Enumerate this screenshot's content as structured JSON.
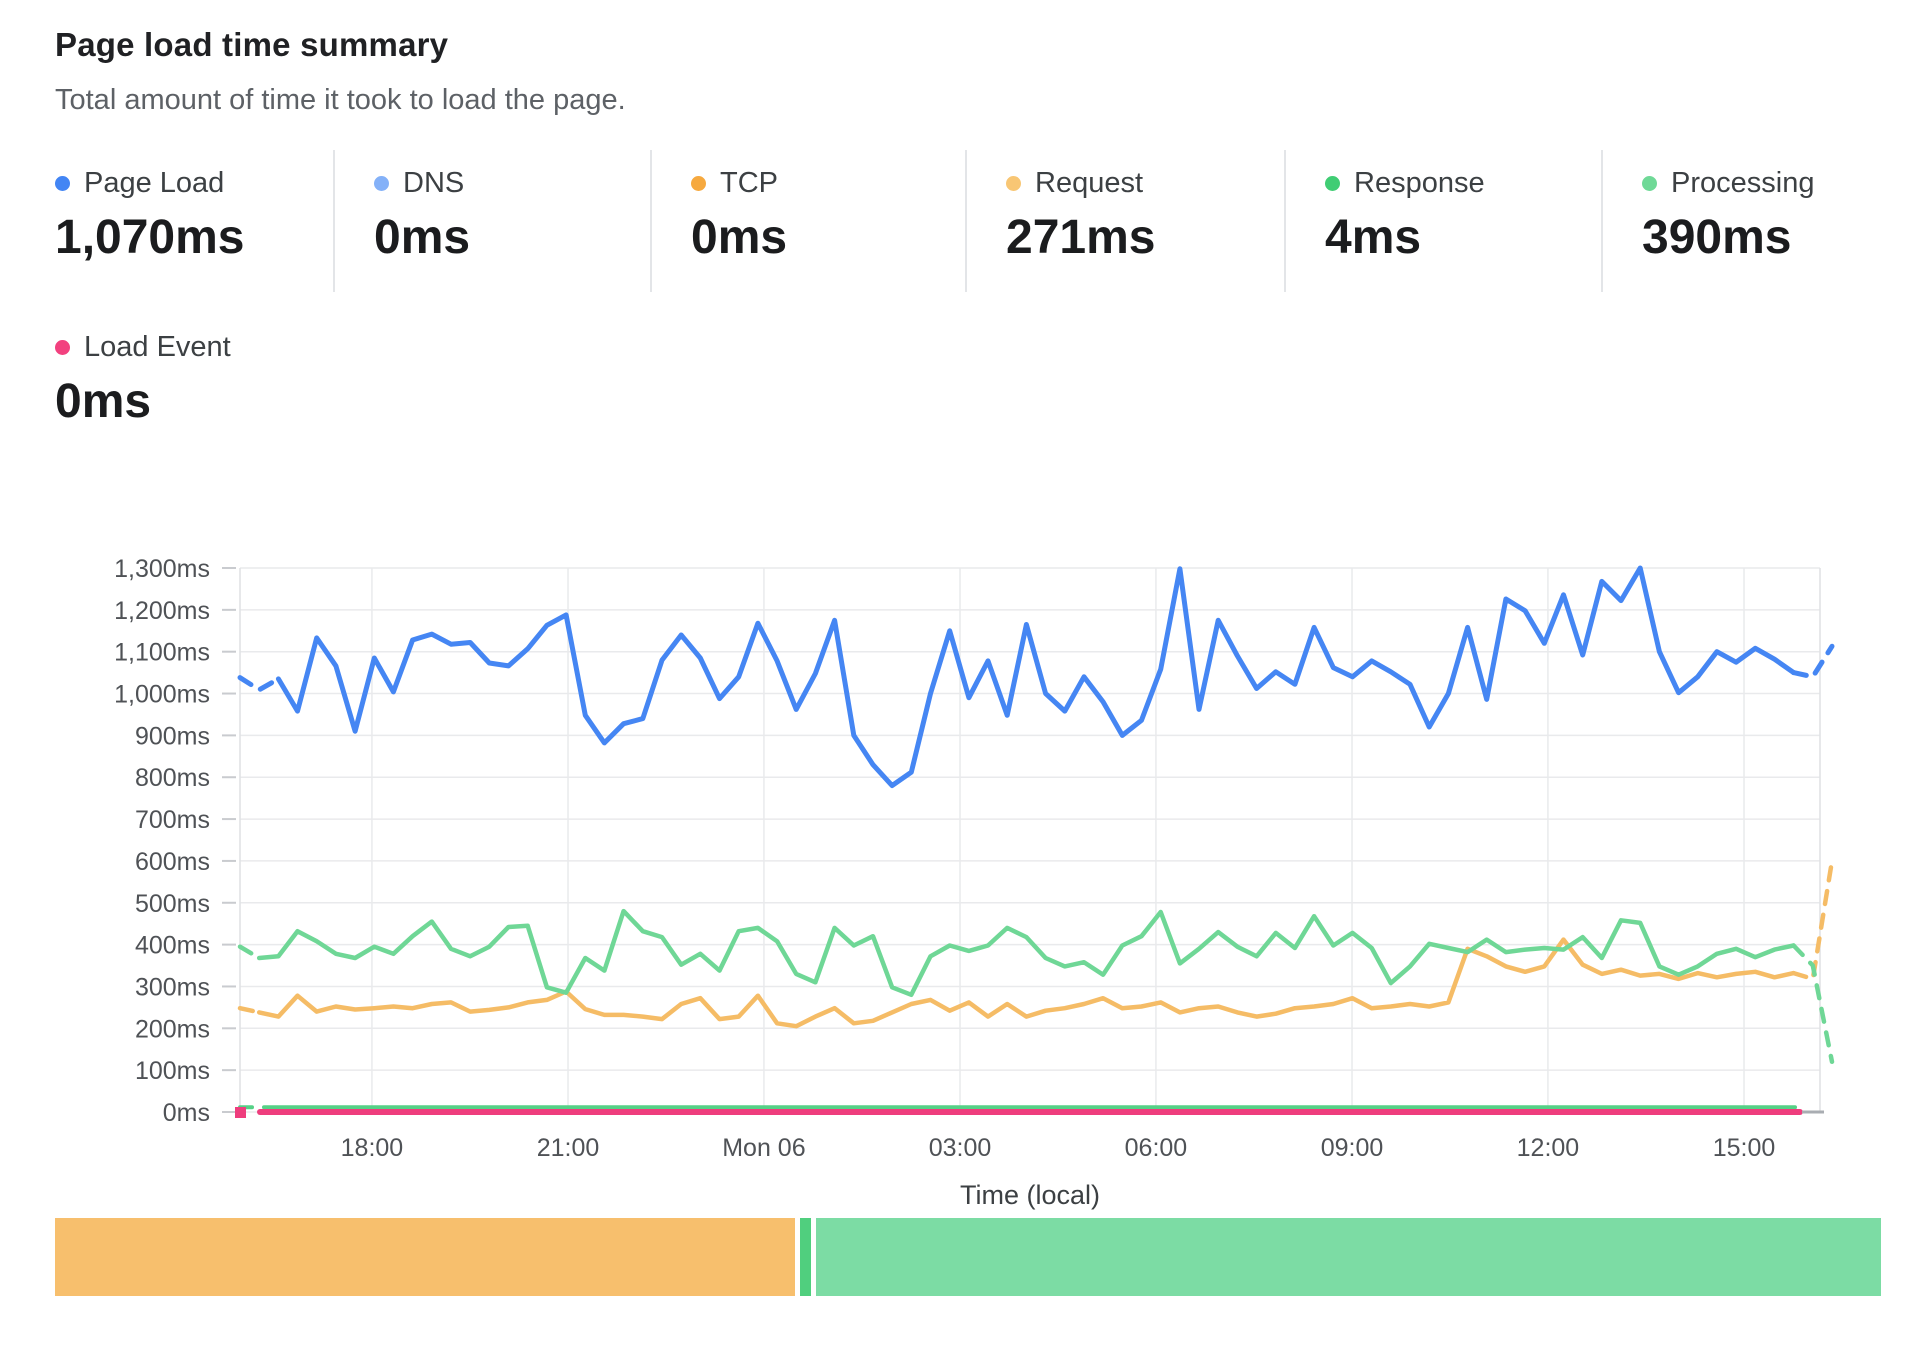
{
  "header": {
    "title": "Page load time summary",
    "subtitle": "Total amount of time it took to load the page."
  },
  "metrics": [
    {
      "id": "page-load",
      "label": "Page Load",
      "value": "1,070ms",
      "color": "#4285f4"
    },
    {
      "id": "dns",
      "label": "DNS",
      "value": "0ms",
      "color": "#84b1f8"
    },
    {
      "id": "tcp",
      "label": "TCP",
      "value": "0ms",
      "color": "#f6a93f"
    },
    {
      "id": "request",
      "label": "Request",
      "value": "271ms",
      "color": "#f8c674"
    },
    {
      "id": "response",
      "label": "Response",
      "value": "4ms",
      "color": "#40cd74"
    },
    {
      "id": "processing",
      "label": "Processing",
      "value": "390ms",
      "color": "#6fd997"
    }
  ],
  "secondary_metric": {
    "id": "load-event",
    "label": "Load Event",
    "value": "0ms",
    "color": "#f2417f"
  },
  "chart_data": {
    "type": "line",
    "title": "Page load time summary",
    "xlabel": "Time (local)",
    "ylabel": "",
    "ylim": [
      0,
      1300
    ],
    "grid": true,
    "legend_position": "none",
    "y_tick_labels": [
      "0ms",
      "100ms",
      "200ms",
      "300ms",
      "400ms",
      "500ms",
      "600ms",
      "700ms",
      "800ms",
      "900ms",
      "1,000ms",
      "1,100ms",
      "1,200ms",
      "1,300ms"
    ],
    "x_ticks": [
      {
        "label": "18:00",
        "f": 0.0835
      },
      {
        "label": "21:00",
        "f": 0.2076
      },
      {
        "label": "Mon 06",
        "f": 0.3316
      },
      {
        "label": "03:00",
        "f": 0.4557
      },
      {
        "label": "06:00",
        "f": 0.5797
      },
      {
        "label": "09:00",
        "f": 0.7038
      },
      {
        "label": "12:00",
        "f": 0.8278
      },
      {
        "label": "15:00",
        "f": 0.9519
      }
    ],
    "series": [
      {
        "name": "Request",
        "color": "#f5bc66",
        "width": 4.5,
        "dash_head": 1,
        "dash_tail": 2,
        "values": [
          248,
          238,
          228,
          278,
          240,
          252,
          245,
          248,
          252,
          248,
          258,
          262,
          240,
          244,
          250,
          262,
          268,
          288,
          246,
          232,
          232,
          228,
          222,
          258,
          272,
          222,
          228,
          278,
          212,
          205,
          228,
          248,
          212,
          218,
          238,
          258,
          268,
          242,
          262,
          228,
          258,
          228,
          242,
          248,
          258,
          272,
          248,
          252,
          262,
          238,
          248,
          252,
          238,
          228,
          235,
          248,
          252,
          258,
          272,
          248,
          252,
          258,
          252,
          262,
          390,
          372,
          348,
          335,
          348,
          412,
          352,
          330,
          340,
          326,
          330,
          318,
          332,
          322,
          330,
          335,
          322,
          332,
          318,
          600
        ]
      },
      {
        "name": "Processing",
        "color": "#6fd796",
        "width": 4.5,
        "dash_head": 1,
        "dash_tail": 2,
        "values": [
          395,
          368,
          372,
          432,
          408,
          378,
          368,
          395,
          378,
          420,
          455,
          390,
          372,
          395,
          442,
          445,
          298,
          285,
          368,
          338,
          480,
          432,
          418,
          352,
          378,
          338,
          432,
          440,
          408,
          330,
          310,
          440,
          398,
          420,
          298,
          280,
          372,
          398,
          385,
          398,
          440,
          418,
          368,
          348,
          358,
          328,
          398,
          420,
          478,
          355,
          390,
          430,
          395,
          372,
          428,
          392,
          468,
          398,
          428,
          392,
          308,
          348,
          402,
          392,
          382,
          412,
          382,
          388,
          392,
          388,
          418,
          368,
          458,
          452,
          348,
          328,
          348,
          378,
          390,
          370,
          388,
          398,
          350,
          120
        ]
      },
      {
        "name": "Page Load",
        "color": "#4586f3",
        "width": 5,
        "dash_head": 2,
        "dash_tail": 2,
        "values": [
          1038,
          1009,
          1035,
          958,
          1133,
          1066,
          910,
          1085,
          1004,
          1128,
          1142,
          1118,
          1122,
          1073,
          1066,
          1107,
          1163,
          1188,
          948,
          882,
          928,
          940,
          1080,
          1140,
          1085,
          988,
          1040,
          1168,
          1078,
          962,
          1048,
          1175,
          900,
          830,
          780,
          812,
          1000,
          1150,
          990,
          1078,
          948,
          1165,
          1000,
          958,
          1040,
          980,
          900,
          936,
          1058,
          1298,
          962,
          1175,
          1090,
          1012,
          1052,
          1022,
          1158,
          1062,
          1040,
          1078,
          1052,
          1022,
          920,
          1000,
          1158,
          986,
          1226,
          1198,
          1120,
          1236,
          1092,
          1268,
          1222,
          1300,
          1100,
          1002,
          1040,
          1100,
          1075,
          1108,
          1082,
          1050,
          1040,
          1113
        ]
      },
      {
        "name": "Response",
        "color": "#55d186",
        "width": 4,
        "constant": 4
      },
      {
        "name": "Load Event",
        "color": "#ee3d7d",
        "width": 6,
        "constant": 0,
        "start_marker": true
      },
      {
        "name": "DNS",
        "color": "#84b1f8",
        "width": 0,
        "constant": 0
      },
      {
        "name": "TCP",
        "color": "#f6a93f",
        "width": 0,
        "constant": 0
      }
    ]
  },
  "breakdown_bar": {
    "segments": [
      {
        "name": "Request",
        "ms": 271,
        "color": "#f7bf6d"
      },
      {
        "name": "Response",
        "ms": 4,
        "color": "#50cf7e"
      },
      {
        "name": "Processing",
        "ms": 390,
        "color": "#7cdca4"
      }
    ]
  }
}
